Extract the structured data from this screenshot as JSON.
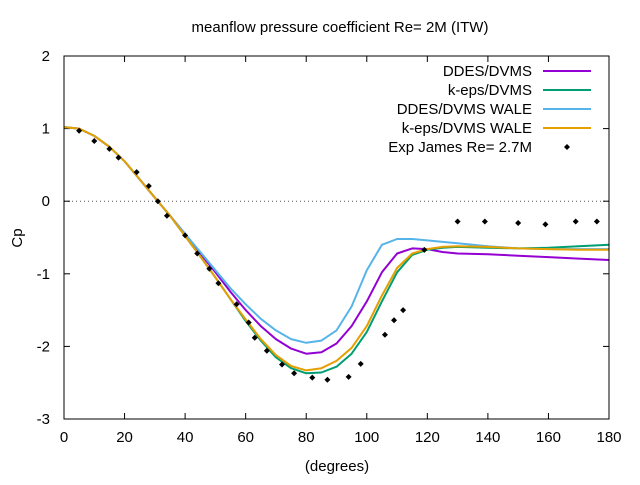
{
  "chart_data": {
    "type": "line",
    "title": "meanflow pressure coefficient Re= 2M (ITW)",
    "xlabel": "(degrees)",
    "ylabel": "Cp",
    "xlim": [
      0,
      180
    ],
    "ylim": [
      -3,
      2
    ],
    "xticks": [
      "0",
      "20",
      "40",
      "60",
      "80",
      "100",
      "120",
      "140",
      "160",
      "180"
    ],
    "yticks": [
      "-3",
      "-2",
      "-1",
      "0",
      "1",
      "2"
    ],
    "zero_line": true,
    "legend_position": "top-right",
    "series": [
      {
        "name": "DDES/DVMS",
        "color": "#9400d3",
        "style": "line",
        "x": [
          0,
          5,
          10,
          15,
          20,
          25,
          30,
          35,
          40,
          45,
          50,
          55,
          60,
          65,
          70,
          75,
          80,
          85,
          90,
          95,
          100,
          105,
          110,
          115,
          120,
          125,
          130,
          140,
          150,
          160,
          170,
          180
        ],
        "y": [
          1.02,
          1.0,
          0.9,
          0.75,
          0.55,
          0.3,
          0.05,
          -0.2,
          -0.45,
          -0.72,
          -0.98,
          -1.25,
          -1.5,
          -1.72,
          -1.9,
          -2.03,
          -2.1,
          -2.08,
          -1.96,
          -1.72,
          -1.38,
          -0.98,
          -0.72,
          -0.65,
          -0.66,
          -0.7,
          -0.72,
          -0.73,
          -0.75,
          -0.77,
          -0.79,
          -0.81
        ]
      },
      {
        "name": "k-eps/DVMS",
        "color": "#009e73",
        "style": "line",
        "x": [
          0,
          5,
          10,
          15,
          20,
          25,
          30,
          35,
          40,
          45,
          50,
          55,
          60,
          65,
          70,
          75,
          80,
          85,
          90,
          95,
          100,
          105,
          110,
          115,
          120,
          125,
          130,
          140,
          150,
          160,
          170,
          180
        ],
        "y": [
          1.02,
          1.0,
          0.9,
          0.75,
          0.55,
          0.3,
          0.05,
          -0.2,
          -0.48,
          -0.76,
          -1.05,
          -1.35,
          -1.65,
          -1.92,
          -2.15,
          -2.3,
          -2.37,
          -2.36,
          -2.28,
          -2.1,
          -1.8,
          -1.38,
          -0.98,
          -0.74,
          -0.67,
          -0.64,
          -0.63,
          -0.64,
          -0.65,
          -0.64,
          -0.62,
          -0.6
        ]
      },
      {
        "name": "DDES/DVMS WALE",
        "color": "#56b4e9",
        "style": "line",
        "x": [
          0,
          5,
          10,
          15,
          20,
          25,
          30,
          35,
          40,
          45,
          50,
          55,
          60,
          65,
          70,
          75,
          80,
          85,
          90,
          95,
          100,
          105,
          110,
          115,
          120,
          125,
          130,
          140,
          150,
          160,
          170,
          180
        ],
        "y": [
          1.02,
          1.0,
          0.9,
          0.75,
          0.55,
          0.3,
          0.05,
          -0.2,
          -0.45,
          -0.7,
          -0.95,
          -1.2,
          -1.42,
          -1.62,
          -1.78,
          -1.9,
          -1.95,
          -1.92,
          -1.78,
          -1.45,
          -0.95,
          -0.6,
          -0.52,
          -0.52,
          -0.54,
          -0.56,
          -0.58,
          -0.62,
          -0.65,
          -0.66,
          -0.66,
          -0.66
        ]
      },
      {
        "name": "k-eps/DVMS WALE",
        "color": "#e69f00",
        "style": "line",
        "x": [
          0,
          5,
          10,
          15,
          20,
          25,
          30,
          35,
          40,
          45,
          50,
          55,
          60,
          65,
          70,
          75,
          80,
          85,
          90,
          95,
          100,
          105,
          110,
          115,
          120,
          125,
          130,
          140,
          150,
          160,
          170,
          180
        ],
        "y": [
          1.02,
          1.0,
          0.9,
          0.75,
          0.55,
          0.3,
          0.05,
          -0.2,
          -0.48,
          -0.76,
          -1.05,
          -1.35,
          -1.63,
          -1.9,
          -2.12,
          -2.27,
          -2.33,
          -2.3,
          -2.2,
          -2.02,
          -1.72,
          -1.3,
          -0.92,
          -0.72,
          -0.66,
          -0.63,
          -0.62,
          -0.63,
          -0.65,
          -0.66,
          -0.67,
          -0.67
        ]
      },
      {
        "name": "Exp James Re= 2.7M",
        "color": "#000000",
        "style": "points",
        "x": [
          5,
          10,
          15,
          18,
          24,
          28,
          31,
          34,
          40,
          44,
          48,
          51,
          57,
          61,
          63,
          67,
          72,
          76,
          82,
          87,
          94,
          98,
          106,
          109,
          112,
          119,
          130,
          139,
          150,
          159,
          169,
          176
        ],
        "y": [
          0.97,
          0.83,
          0.72,
          0.6,
          0.4,
          0.21,
          0.0,
          -0.2,
          -0.47,
          -0.72,
          -0.93,
          -1.13,
          -1.42,
          -1.67,
          -1.88,
          -2.06,
          -2.25,
          -2.37,
          -2.43,
          -2.46,
          -2.42,
          -2.24,
          -1.84,
          -1.64,
          -1.5,
          -0.67,
          -0.28,
          -0.28,
          -0.3,
          -0.32,
          -0.28,
          -0.28
        ]
      }
    ]
  }
}
